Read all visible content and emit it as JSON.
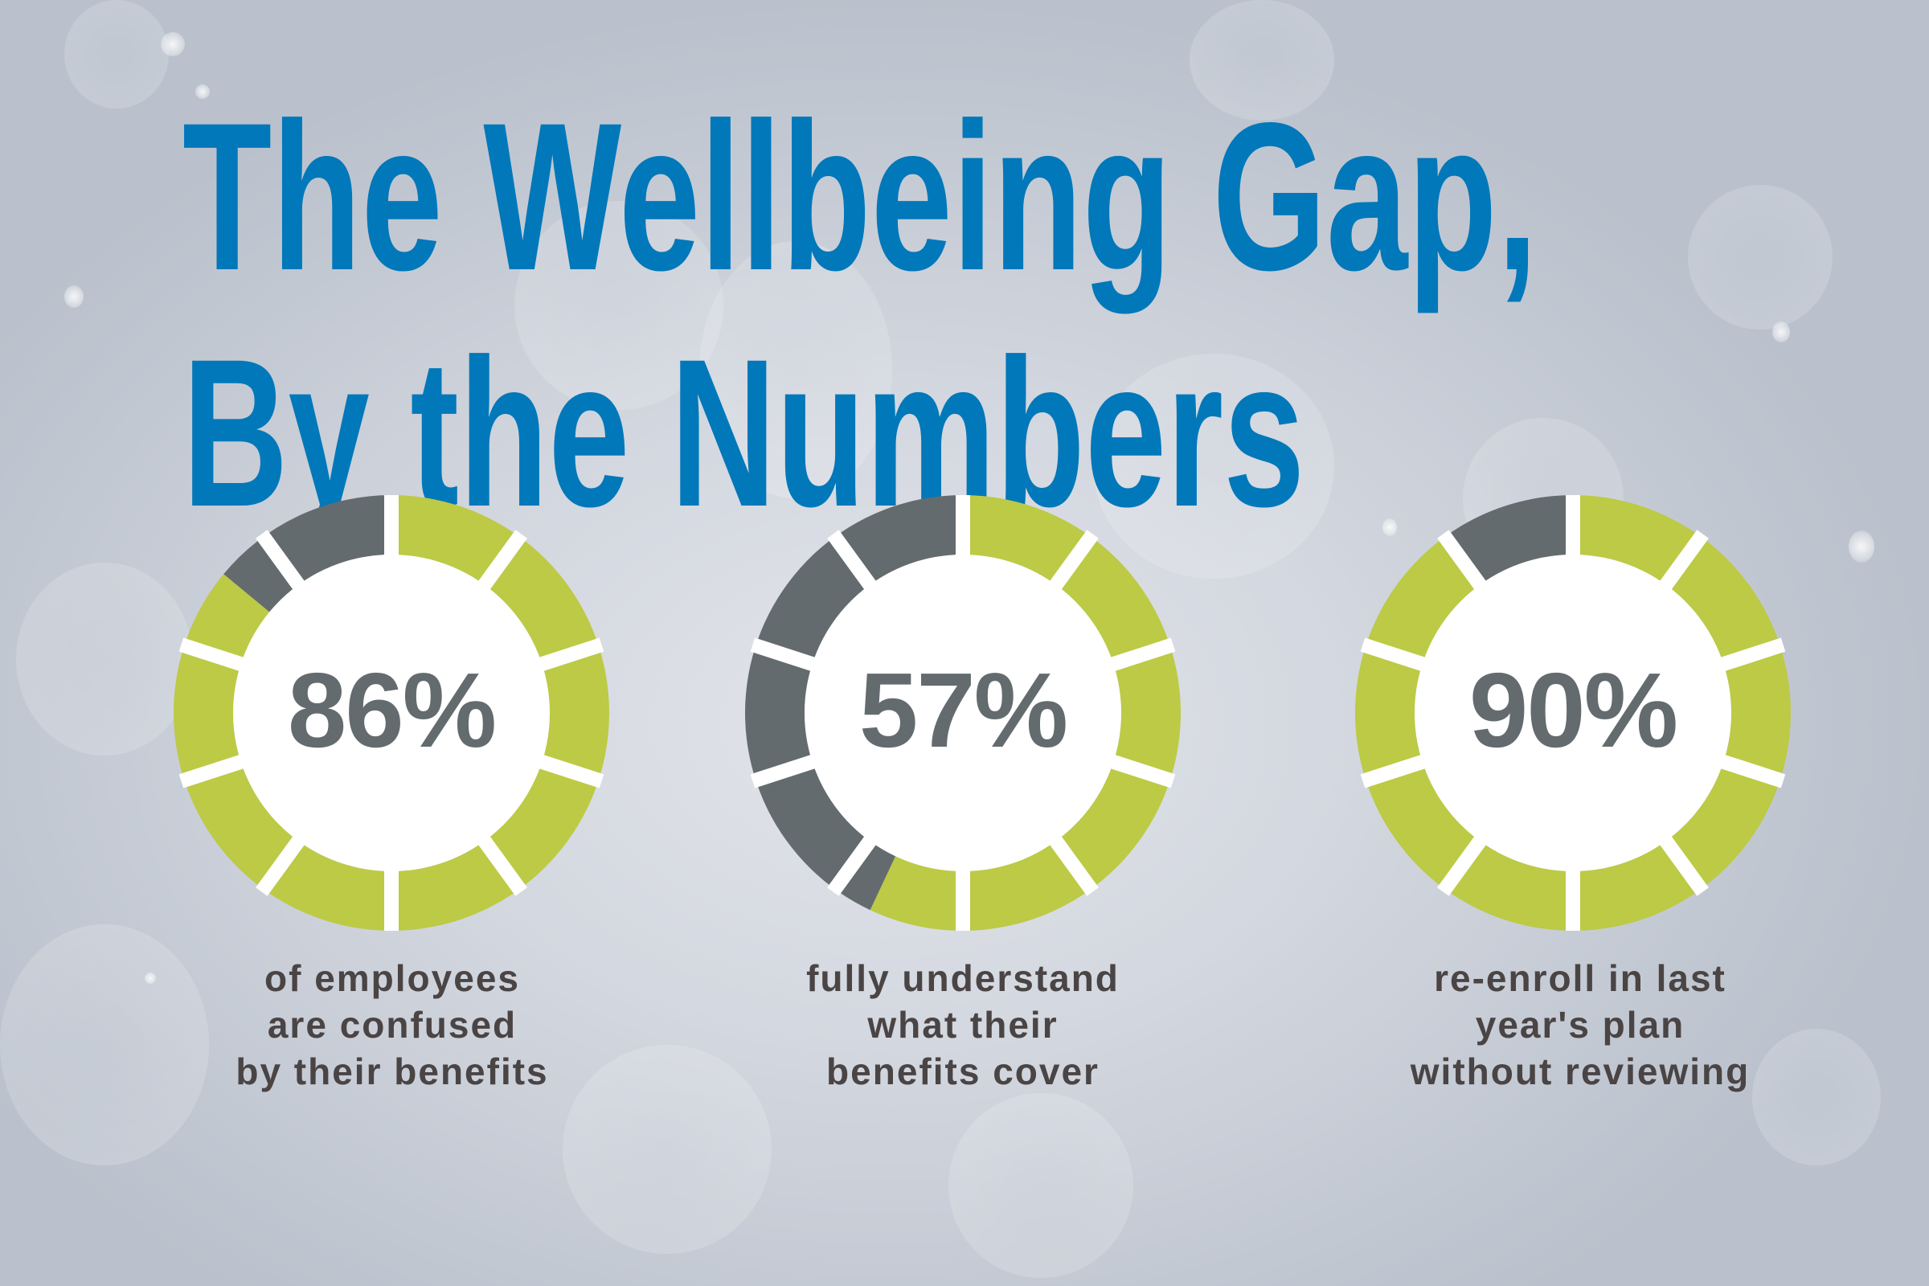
{
  "title": {
    "line1": "The Wellbeing Gap,",
    "line2": "By the Numbers"
  },
  "colors": {
    "title": "#0078BA",
    "filled": "#BCCA45",
    "remainder": "#646B6E",
    "percent_text": "#646B6E",
    "description_text": "#4A4444",
    "gap": "#FFFFFF",
    "inner": "#FFFFFF"
  },
  "stats": [
    {
      "percent_label": "86%",
      "value": 86,
      "description": [
        "of employees",
        "are confused",
        "by their benefits"
      ]
    },
    {
      "percent_label": "57%",
      "value": 57,
      "description": [
        "fully understand",
        "what their",
        "benefits cover"
      ]
    },
    {
      "percent_label": "90%",
      "value": 90,
      "description": [
        "re-enroll in last",
        "year's plan",
        "without reviewing"
      ]
    }
  ],
  "chart_data": [
    {
      "type": "pie",
      "variant": "segmented-donut",
      "segments": 10,
      "title": "86%",
      "categories": [
        "of employees are confused by their benefits",
        "remainder"
      ],
      "values": [
        86,
        14
      ],
      "center_label": "86%",
      "caption": "of employees are confused by their benefits"
    },
    {
      "type": "pie",
      "variant": "segmented-donut",
      "segments": 10,
      "title": "57%",
      "categories": [
        "fully understand what their benefits cover",
        "remainder"
      ],
      "values": [
        57,
        43
      ],
      "center_label": "57%",
      "caption": "fully understand what their benefits cover"
    },
    {
      "type": "pie",
      "variant": "segmented-donut",
      "segments": 10,
      "title": "90%",
      "categories": [
        "re-enroll in last year's plan without reviewing",
        "remainder"
      ],
      "values": [
        90,
        10
      ],
      "center_label": "90%",
      "caption": "re-enroll in last year's plan without reviewing"
    }
  ]
}
